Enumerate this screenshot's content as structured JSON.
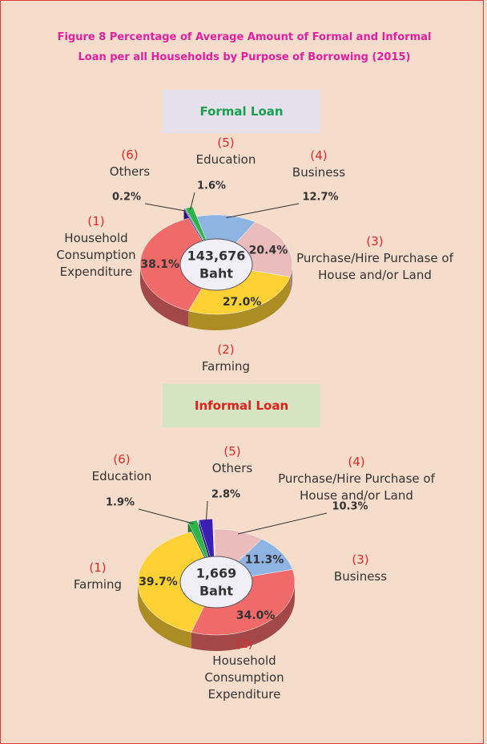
{
  "title": "Figure  8  Percentage of Average Amount of Formal and Informal Loan per all Households by Purpose of Borrowing (2015)",
  "chart_data": [
    {
      "type": "pie",
      "title": "Formal Loan",
      "categories": [
        "Household Consumption Expenditure",
        "Farming",
        "Purchase/Hire Purchase of House and/or Land",
        "Business",
        "Education",
        "Others"
      ],
      "category_numbers": [
        "(1)",
        "(2)",
        "(3)",
        "(4)",
        "(5)",
        "(6)"
      ],
      "values": [
        38.1,
        27.0,
        20.4,
        12.7,
        1.6,
        0.2
      ],
      "value_labels": [
        "38.1%",
        "27.0%",
        "20.4%",
        "12.7%",
        "1.6%",
        "0.2%"
      ],
      "colors": [
        "#f06a6a",
        "#fdd034",
        "#ebbcbc",
        "#8fb4e3",
        "#2db34a",
        "#3b1fb5"
      ],
      "center_label": "143,676",
      "center_unit": "Baht"
    },
    {
      "type": "pie",
      "title": "Informal Loan",
      "categories": [
        "Farming",
        "Household Consumption Expenditure",
        "Business",
        "Purchase/Hire Purchase of House and/or Land",
        "Others",
        "Education"
      ],
      "category_numbers": [
        "(1)",
        "(2)",
        "(3)",
        "(4)",
        "(5)",
        "(6)"
      ],
      "values": [
        39.7,
        34.0,
        11.3,
        10.3,
        2.8,
        1.9
      ],
      "value_labels": [
        "39.7%",
        "34.0%",
        "11.3%",
        "10.3%",
        "2.8%",
        "1.9%"
      ],
      "colors": [
        "#fdd034",
        "#f06a6a",
        "#8fb4e3",
        "#ebbcbc",
        "#3b1fb5",
        "#2db34a"
      ],
      "center_label": "1,669",
      "center_unit": "Baht"
    }
  ]
}
